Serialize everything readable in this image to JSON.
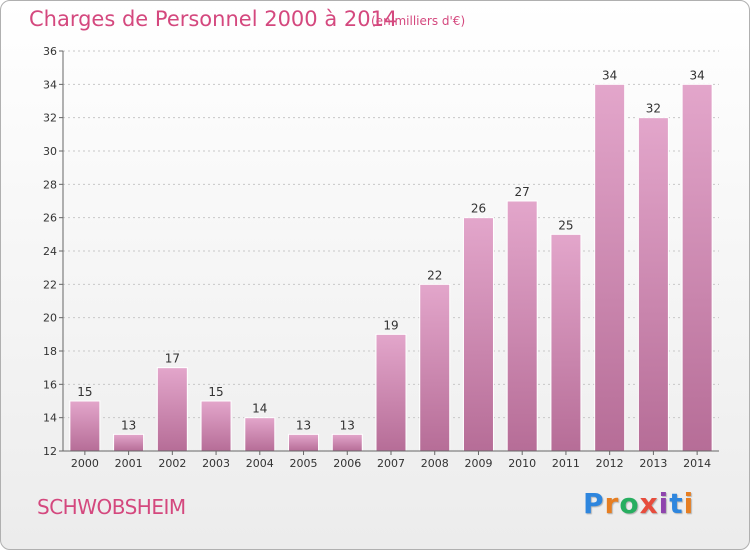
{
  "header": {
    "title": "Charges de Personnel 2000 à 2014",
    "unit": "(en milliers d'€)"
  },
  "footer": {
    "commune": "SCHWOBSHEIM",
    "logo_letters": [
      "P",
      "r",
      "o",
      "x",
      "i",
      "t",
      "i"
    ],
    "logo_colors": [
      "#2e86de",
      "#e67e22",
      "#27ae60",
      "#e74c3c",
      "#8e44ad",
      "#2e86de",
      "#e67e22"
    ]
  },
  "colors": {
    "bar_top": "#e3a6cb",
    "bar_bottom": "#b66d97",
    "accent": "#d4487e",
    "grid": "#c8c8c8"
  },
  "chart_data": {
    "type": "bar",
    "title": "Charges de Personnel 2000 à 2014",
    "subtitle": "(en milliers d'€)",
    "categories": [
      "2000",
      "2001",
      "2002",
      "2003",
      "2004",
      "2005",
      "2006",
      "2007",
      "2008",
      "2009",
      "2010",
      "2011",
      "2012",
      "2013",
      "2014"
    ],
    "values": [
      15,
      13,
      17,
      15,
      14,
      13,
      13,
      19,
      22,
      26,
      27,
      25,
      34,
      32,
      34
    ],
    "ylim": [
      12,
      36
    ],
    "yticks": [
      12,
      14,
      16,
      18,
      20,
      22,
      24,
      26,
      28,
      30,
      32,
      34,
      36
    ],
    "grid": true,
    "xlabel": "",
    "ylabel": ""
  }
}
